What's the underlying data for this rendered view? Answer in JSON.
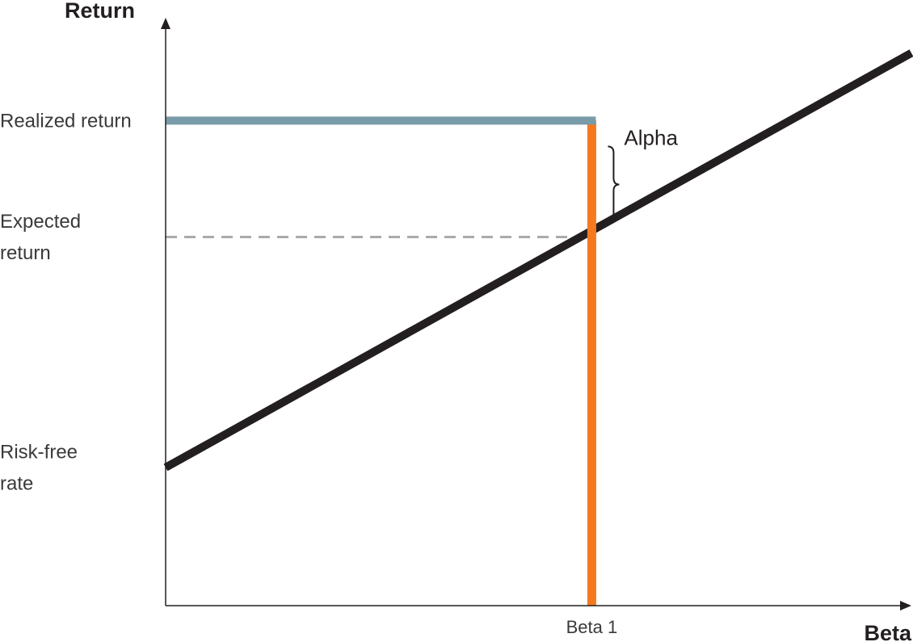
{
  "chart_data": {
    "type": "line",
    "title": "",
    "xlabel": "Beta",
    "ylabel": "Return",
    "xlim": [
      0,
      1.75
    ],
    "ylim": [
      0,
      1
    ],
    "grid": false,
    "y_labels": [
      {
        "text": [
          "Realized return"
        ],
        "value": 0.825
      },
      {
        "text": [
          "Expected",
          "return"
        ],
        "value": 0.627
      },
      {
        "text": [
          "Risk-free",
          "rate"
        ],
        "value": 0.235
      }
    ],
    "x_ticks": [
      {
        "text": "Beta 1",
        "value": 1
      }
    ],
    "security_market_line": {
      "x": [
        0,
        1.75
      ],
      "y": [
        0.235,
        0.94
      ]
    },
    "realized_return_line": {
      "value": 0.825,
      "x_end": 1
    },
    "expected_return_line": {
      "value": 0.627,
      "x_end": 1
    },
    "beta_one_line": {
      "x": 1,
      "y_top": 0.825
    },
    "alpha": {
      "text": "Alpha",
      "from": 0.627,
      "to": 0.825
    },
    "colors": {
      "axis": "#231f20",
      "security_market_line": "#231f20",
      "realized_return_line": "#7a9ba8",
      "expected_return_line": "#aaaaaa",
      "beta_one_line": "#f47a20"
    }
  }
}
